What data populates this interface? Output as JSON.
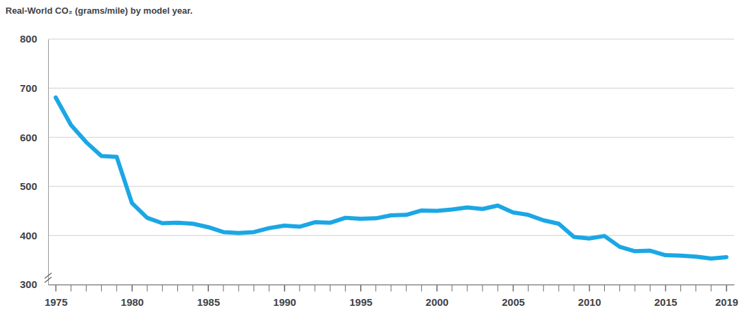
{
  "chart_data": {
    "type": "line",
    "title": "Real-World CO₂ (grams/mile) by model year.",
    "x": [
      1975,
      1976,
      1977,
      1978,
      1979,
      1980,
      1981,
      1982,
      1983,
      1984,
      1985,
      1986,
      1987,
      1988,
      1989,
      1990,
      1991,
      1992,
      1993,
      1994,
      1995,
      1996,
      1997,
      1998,
      1999,
      2000,
      2001,
      2002,
      2003,
      2004,
      2005,
      2006,
      2007,
      2008,
      2009,
      2010,
      2011,
      2012,
      2013,
      2014,
      2015,
      2016,
      2017,
      2018,
      2019
    ],
    "series": [
      {
        "name": "Real-World CO₂",
        "color": "#1ba7e5",
        "values": [
          681,
          625,
          590,
          562,
          560,
          466,
          436,
          425,
          426,
          424,
          417,
          407,
          405,
          407,
          415,
          420,
          418,
          427,
          426,
          436,
          434,
          435,
          441,
          442,
          451,
          450,
          453,
          457,
          454,
          461,
          447,
          442,
          431,
          424,
          397,
          394,
          399,
          377,
          368,
          369,
          360,
          359,
          357,
          353,
          356
        ]
      }
    ],
    "xlim": [
      1974.5,
      2019.5
    ],
    "xticks": [
      1975,
      1980,
      1985,
      1990,
      1995,
      2000,
      2005,
      2010,
      2015,
      2019
    ],
    "ylim": [
      300,
      800
    ],
    "yticks": [
      300,
      400,
      500,
      600,
      700,
      800
    ],
    "grid": true
  }
}
